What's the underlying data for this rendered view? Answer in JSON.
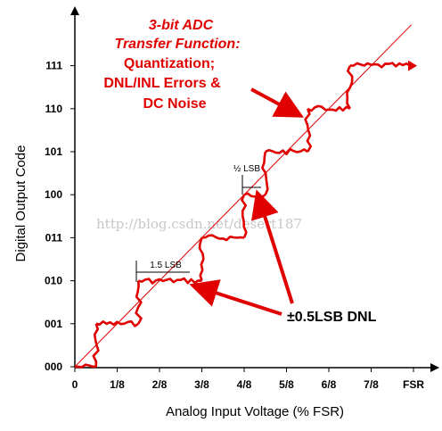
{
  "title": {
    "lines": [
      "3-bit ADC",
      "Transfer Function:",
      "Quantization;",
      "DNL/INL Errors &",
      "DC Noise"
    ]
  },
  "y_axis": {
    "label": "Digital Output Code",
    "ticks": [
      "000",
      "001",
      "010",
      "011",
      "100",
      "101",
      "110",
      "111"
    ]
  },
  "x_axis": {
    "label": "Analog Input Voltage (% FSR)",
    "ticks": [
      "0",
      "1/8",
      "2/8",
      "3/8",
      "4/8",
      "5/8",
      "6/8",
      "7/8",
      "FSR"
    ]
  },
  "annotations": {
    "lsb_1_5": "1.5 LSB",
    "lsb_half": "½ LSB",
    "dnl": "±0.5LSB DNL"
  },
  "watermark": "http://blog.csdn.net/desert187",
  "colors": {
    "staircase": "#e00000",
    "ideal_line": "#e00000",
    "title": "#e00000"
  },
  "chart_data": {
    "type": "line",
    "title": "3-bit ADC Transfer Function: Quantization; DNL/INL Errors & DC Noise",
    "xlabel": "Analog Input Voltage (% FSR)",
    "ylabel": "Digital Output Code",
    "x_ticks": [
      "0",
      "1/8",
      "2/8",
      "3/8",
      "4/8",
      "5/8",
      "6/8",
      "7/8",
      "FSR"
    ],
    "y_ticks": [
      "000",
      "001",
      "010",
      "011",
      "100",
      "101",
      "110",
      "111"
    ],
    "xlim": [
      0,
      8
    ],
    "ylim": [
      0,
      7
    ],
    "transitions": [
      0.5,
      1.5,
      3.0,
      4.0,
      4.5,
      5.5,
      6.5
    ],
    "series": [
      {
        "values": [
          {
            "x_start": 0.0,
            "x_end": 0.5,
            "code": 0
          },
          {
            "x_start": 0.5,
            "x_end": 1.5,
            "code": 1
          },
          {
            "x_start": 1.5,
            "x_end": 3.0,
            "code": 2
          },
          {
            "x_start": 3.0,
            "x_end": 4.0,
            "code": 3
          },
          {
            "x_start": 4.0,
            "x_end": 4.5,
            "code": 4
          },
          {
            "x_start": 4.5,
            "x_end": 5.5,
            "code": 5
          },
          {
            "x_start": 5.5,
            "x_end": 6.5,
            "code": 6
          },
          {
            "x_start": 6.5,
            "x_end": 8.0,
            "code": 7
          }
        ]
      }
    ],
    "ideal_line": {
      "from": [
        0,
        0
      ],
      "to": [
        8,
        8
      ]
    },
    "grid": false
  }
}
